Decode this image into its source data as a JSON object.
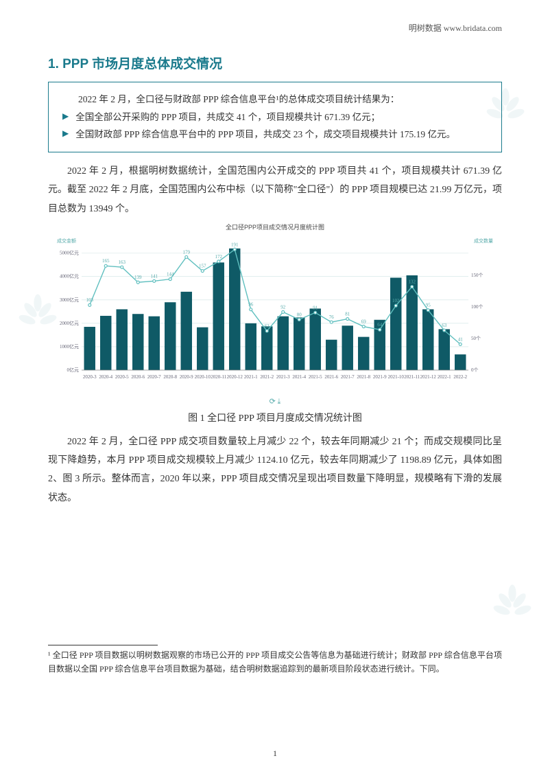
{
  "header": {
    "brand": "明树数据 www.bridata.com"
  },
  "section_title": "1. PPP 市场月度总体成交情况",
  "summary_box": {
    "intro": "2022 年 2 月，全口径与财政部 PPP 综合信息平台¹的总体成交项目统计结果为：",
    "bullets": [
      "全国全部公开采购的 PPP 项目，共成交 41 个，项目规模共计 671.39 亿元；",
      "全国财政部 PPP 综合信息平台中的 PPP 项目，共成交 23 个，成交项目规模共计 175.19 亿元。"
    ]
  },
  "para1": "2022 年 2 月，根据明树数据统计，全国范围内公开成交的 PPP 项目共 41 个，项目规模共计 671.39 亿元。截至 2022 年 2 月底，全国范围内公布中标（以下简称\"全口径\"）的 PPP 项目规模已达 21.99 万亿元，项目总数为 13949 个。",
  "chart": {
    "type": "bar+line",
    "title": "全口径PPP项目成交情况月度统计图",
    "categories": [
      "2020-3",
      "2020-4",
      "2020-5",
      "2020-6",
      "2020-7",
      "2020-8",
      "2020-9",
      "2020-10",
      "2020-11",
      "2020-12",
      "2021-1",
      "2021-2",
      "2021-3",
      "2021-4",
      "2021-5",
      "2021-6",
      "2021-7",
      "2021-8",
      "2021-9",
      "2021-10",
      "2021-11",
      "2021-12",
      "2022-1",
      "2022-2"
    ],
    "bar_values": [
      1850,
      2320,
      2600,
      2400,
      2300,
      2900,
      3350,
      1830,
      4600,
      5200,
      2000,
      1870,
      2300,
      2250,
      2630,
      1300,
      1900,
      1420,
      2150,
      3950,
      4050,
      2600,
      1750,
      671
    ],
    "line_values": [
      103,
      165,
      163,
      139,
      141,
      144,
      179,
      157,
      172,
      191,
      96,
      62,
      92,
      80,
      91,
      76,
      81,
      69,
      64,
      102,
      132,
      95,
      63,
      41
    ],
    "line_labels": [
      "103",
      "165",
      "163",
      "139",
      "141",
      "144",
      "179",
      "157",
      "172",
      "191",
      "96",
      "62",
      "92",
      "80",
      "91",
      "76",
      "81",
      "69",
      "64",
      "102",
      "132",
      "95",
      "63",
      "41"
    ],
    "y_left": {
      "label": "成交金额",
      "ticks": [
        "0亿元",
        "1000亿元",
        "2000亿元",
        "3000亿元",
        "4000亿元",
        "5000亿元"
      ],
      "max": 5400
    },
    "y_right": {
      "label": "成交数量",
      "ticks": [
        "0个",
        "50个",
        "100个",
        "150个"
      ],
      "max": 200
    },
    "bar_color": "#0f5a66",
    "line_color": "#5fbfbf",
    "dot_color": "#5fbfbf",
    "grid_color": "#cfe3e3",
    "background_color": "#ffffff",
    "label_fontsize": 7,
    "axis_fontsize": 7
  },
  "caption1": "图 1  全口径 PPP 项目月度成交情况统计图",
  "para2": "2022 年 2 月，全口径 PPP 成交项目数量较上月减少 22 个，较去年同期减少 21 个；而成交规模同比呈现下降趋势，本月 PPP 项目成交规模较上月减少 1124.10 亿元，较去年同期减少了 1198.89 亿元，具体如图 2、图 3 所示。整体而言，2020 年以来，PPP 项目成交情况呈现出项目数量下降明显，规模略有下滑的发展状态。",
  "footnote": "¹ 全口径 PPP 项目数据以明树数据观察的市场已公开的 PPP 项目成交公告等信息为基础进行统计；财政部 PPP 综合信息平台项目数据以全国 PPP 综合信息平台项目数据为基础，结合明树数据追踪到的最新项目阶段状态进行统计。下同。",
  "page_number": "1",
  "colors": {
    "accent": "#1a7a8c",
    "text": "#333333"
  }
}
